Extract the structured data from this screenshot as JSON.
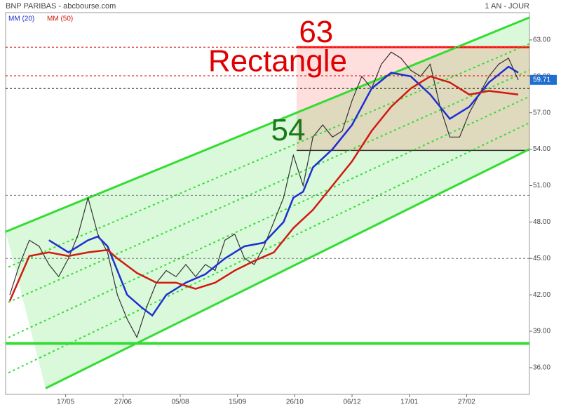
{
  "chart_data": {
    "type": "line",
    "title": "BNP PARIBAS - abcbourse.com",
    "subtitle": "1 AN - JOUR",
    "xlim": [
      0,
      375
    ],
    "ylim": [
      33.8,
      65.25
    ],
    "xticks": [
      {
        "value": 43,
        "label": "17/05"
      },
      {
        "value": 84,
        "label": "27/06"
      },
      {
        "value": 125,
        "label": "05/08"
      },
      {
        "value": 166,
        "label": "15/09"
      },
      {
        "value": 207,
        "label": "26/10"
      },
      {
        "value": 248,
        "label": "06/12"
      },
      {
        "value": 289,
        "label": "17/01"
      },
      {
        "value": 330,
        "label": "27/02"
      }
    ],
    "yticks": [
      {
        "value": 36,
        "label": "36.00"
      },
      {
        "value": 39,
        "label": "39.00"
      },
      {
        "value": 42,
        "label": "42.00"
      },
      {
        "value": 45,
        "label": "45.00"
      },
      {
        "value": 48,
        "label": "48.00"
      },
      {
        "value": 51,
        "label": "51.00"
      },
      {
        "value": 54,
        "label": "54.00"
      },
      {
        "value": 57,
        "label": "57.00"
      },
      {
        "value": 60,
        "label": "60.00"
      },
      {
        "value": 63,
        "label": "63.00"
      }
    ],
    "series": [
      {
        "color": "#333333",
        "x": [
          3,
          10,
          17,
          24,
          31,
          38,
          45,
          52,
          59,
          66,
          73,
          80,
          87,
          94,
          101,
          108,
          115,
          122,
          129,
          136,
          143,
          150,
          157,
          164,
          171,
          178,
          185,
          192,
          199,
          206,
          213,
          220,
          227,
          234,
          241,
          248,
          255,
          262,
          269,
          276,
          283,
          290,
          297,
          304,
          311,
          318,
          325,
          332,
          339,
          346,
          353,
          360,
          367
        ],
        "values": [
          42,
          44.5,
          46.5,
          46,
          44.5,
          43.5,
          45,
          47,
          50,
          47,
          45.5,
          42,
          40,
          38.5,
          41,
          43,
          44,
          43.5,
          44.5,
          43.5,
          44.5,
          44,
          46.5,
          47,
          45,
          44.5,
          46,
          48,
          50,
          53.5,
          51,
          55,
          56,
          55,
          55.5,
          58,
          60,
          59,
          61,
          62,
          61.5,
          60.5,
          60,
          61,
          57.5,
          55,
          55,
          57,
          58.5,
          60,
          61,
          61.5,
          59.71
        ],
        "last_label": "59.71"
      },
      {
        "name": "MM (20)",
        "color": "#1f2fd0",
        "x": [
          31,
          45,
          59,
          66,
          73,
          80,
          87,
          97,
          105,
          115,
          129,
          143,
          157,
          171,
          185,
          199,
          206,
          213,
          220,
          234,
          248,
          262,
          276,
          290,
          304,
          318,
          332,
          346,
          360,
          367
        ],
        "values": [
          46.5,
          45.5,
          46.5,
          46.8,
          46,
          44,
          42,
          41,
          40.3,
          42,
          43,
          43.7,
          45,
          46,
          46.3,
          48,
          50,
          50.5,
          52.5,
          54,
          56,
          59,
          60.3,
          60,
          58.5,
          56.5,
          57.5,
          59.5,
          60.8,
          60.3
        ]
      },
      {
        "name": "MM (50)",
        "color": "#d01a10",
        "x": [
          3,
          17,
          31,
          45,
          59,
          73,
          80,
          94,
          108,
          122,
          136,
          150,
          164,
          178,
          192,
          206,
          220,
          234,
          248,
          262,
          276,
          290,
          304,
          318,
          332,
          346,
          360,
          367
        ],
        "values": [
          41.5,
          45.2,
          45.5,
          45.2,
          45.5,
          45.7,
          45,
          43.8,
          43,
          43,
          42.5,
          43,
          44,
          44.8,
          45.5,
          47.5,
          49,
          51,
          53,
          55.5,
          57.5,
          59,
          60,
          59.5,
          58.5,
          58.8,
          58.6,
          58.5
        ]
      }
    ],
    "channel": {
      "upper": [
        [
          0,
          47.2
        ],
        [
          375,
          64.85
        ]
      ],
      "lower": [
        [
          28.6,
          34.3
        ],
        [
          375,
          54.0
        ]
      ],
      "color": "#33dd33"
    },
    "rectangle": {
      "x": [
        208.3,
        375
      ],
      "y": [
        53.9,
        62.4
      ],
      "color": "#ff2020"
    },
    "hlines": [
      {
        "value": 62.4,
        "color": "#e00000",
        "dash": true
      },
      {
        "value": 60.05,
        "color": "#e00000",
        "dash": true
      },
      {
        "value": 59,
        "color": "#000000",
        "dash": true
      },
      {
        "value": 50.2,
        "color": "#777777",
        "dash": true
      },
      {
        "value": 45,
        "color": "#777777",
        "dash": true
      },
      {
        "value": 38,
        "color": "#33dd33",
        "dash": false
      }
    ],
    "annotations": [
      {
        "text": "63",
        "x": 210,
        "y": 63.5,
        "color": "#e00000"
      },
      {
        "text": "Rectangle",
        "x": 145,
        "y": 61.1,
        "color": "#e00000"
      },
      {
        "text": "54",
        "x": 190,
        "y": 55.4,
        "color": "#1a7a1a"
      }
    ]
  }
}
